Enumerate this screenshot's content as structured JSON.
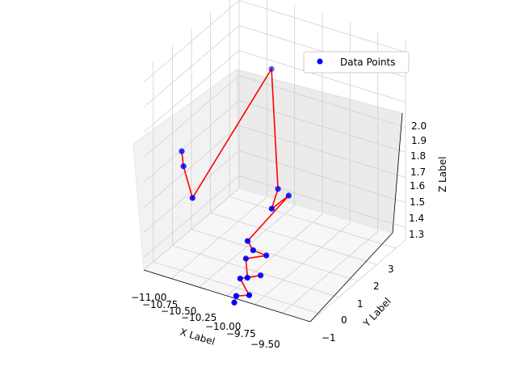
{
  "chart_data": {
    "type": "scatter",
    "projection": "3d",
    "title": "",
    "xlabel": "X Label",
    "ylabel": "Y Label",
    "zlabel": "Z Label",
    "x_ticks": [
      "−11.00",
      "−10.75",
      "−10.50",
      "−10.25",
      "−10.00",
      "−9.75",
      "−9.50"
    ],
    "y_ticks": [
      "−1",
      "0",
      "1",
      "2",
      "3"
    ],
    "z_ticks": [
      "1.3",
      "1.4",
      "1.5",
      "1.6",
      "1.7",
      "1.8",
      "1.9",
      "2.0"
    ],
    "grid": true,
    "legend": {
      "placement": "upper-right",
      "entries": [
        "Data Points"
      ]
    },
    "series": [
      {
        "name": "Data Points",
        "marker_color": "#0000ff",
        "line_color": "#ff0000",
        "points": [
          {
            "x": -10.95,
            "y": 0.2,
            "z": 1.62
          },
          {
            "x": -10.9,
            "y": 0.0,
            "z": 1.58
          },
          {
            "x": -10.75,
            "y": -0.4,
            "z": 1.5
          },
          {
            "x": -10.45,
            "y": 2.0,
            "z": 1.9
          },
          {
            "x": -10.1,
            "y": 0.3,
            "z": 1.58
          },
          {
            "x": -9.95,
            "y": -0.9,
            "z": 1.6
          },
          {
            "x": -9.9,
            "y": -0.3,
            "z": 1.62
          },
          {
            "x": -10.15,
            "y": -1.0,
            "z": 1.45
          },
          {
            "x": -10.1,
            "y": -1.0,
            "z": 1.42
          },
          {
            "x": -10.05,
            "y": -0.6,
            "z": 1.38
          },
          {
            "x": -10.2,
            "y": -0.8,
            "z": 1.36
          },
          {
            "x": -10.1,
            "y": -1.3,
            "z": 1.33
          },
          {
            "x": -10.05,
            "y": -0.9,
            "z": 1.32
          },
          {
            "x": -10.2,
            "y": -1.1,
            "z": 1.3
          },
          {
            "x": -10.05,
            "y": -1.5,
            "z": 1.28
          },
          {
            "x": -10.15,
            "y": -1.6,
            "z": 1.27
          },
          {
            "x": -10.15,
            "y": -1.7,
            "z": 1.25
          }
        ]
      }
    ]
  }
}
